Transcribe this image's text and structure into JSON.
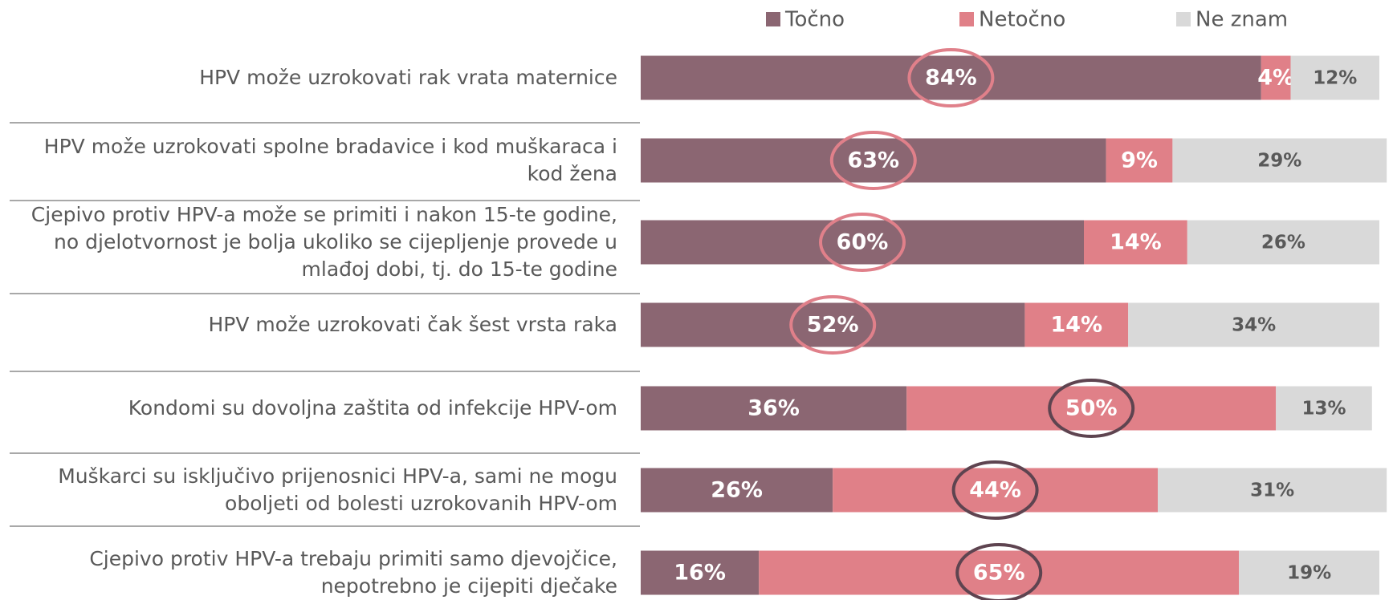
{
  "chart_data": {
    "type": "stacked_bar_horizontal",
    "categories": [
      "HPV može uzrokovati rak vrata maternice",
      "HPV može uzrokovati spolne bradavice i kod muškaraca i\nkod žena",
      "Cjepivo protiv HPV-a može se primiti i nakon 15-te godine,\nno djelotvornost je bolja ukoliko se cijepljenje provede u\nmlađoj dobi, tj. do 15-te godine",
      "HPV može uzrokovati čak šest vrsta raka",
      "Kondomi su dovoljna zaštita od infekcije HPV-om",
      "Muškarci su isključivo prijenosnici HPV-a, sami ne mogu\noboljeti od bolesti uzrokovanih HPV-om",
      "Cjepivo protiv HPV-a trebaju primiti samo djevojčice,\nnepotrebno je cijepiti dječake"
    ],
    "series": [
      {
        "name": "Točno",
        "color": "#8b6672",
        "values": [
          84,
          63,
          60,
          52,
          36,
          26,
          16
        ],
        "value_labels": [
          "84%",
          "63%",
          "60%",
          "52%",
          "36%",
          "26%",
          "16%"
        ]
      },
      {
        "name": "Netočno",
        "color": "#e08088",
        "values": [
          4,
          9,
          14,
          14,
          50,
          44,
          65
        ],
        "value_labels": [
          "4%",
          "9%",
          "14%",
          "14%",
          "50%",
          "44%",
          "65%"
        ]
      },
      {
        "name": "Ne znam",
        "color": "#d9d9d9",
        "values": [
          12,
          29,
          26,
          34,
          13,
          31,
          19
        ],
        "value_labels": [
          "12%",
          "29%",
          "26%",
          "34%",
          "13%",
          "31%",
          "19%"
        ]
      }
    ],
    "xlim": [
      0,
      100
    ],
    "highlighted_series": [
      0,
      0,
      0,
      0,
      1,
      1,
      1
    ],
    "highlight_colors": [
      "#e0808a",
      "#5e4450"
    ],
    "legend": "top"
  }
}
